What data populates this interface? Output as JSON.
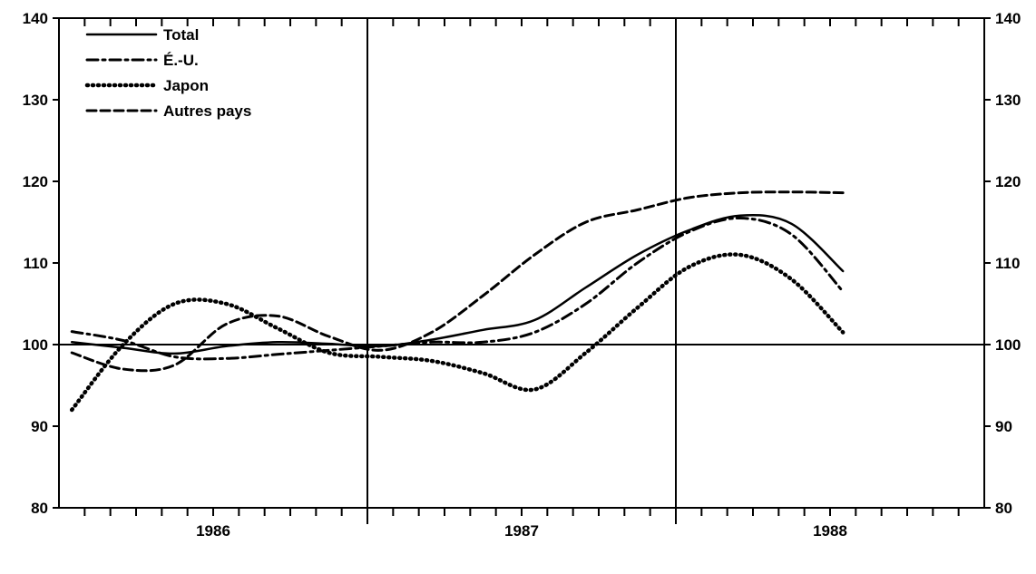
{
  "chart_data": {
    "type": "line",
    "x_period_labels": [
      "1986",
      "1987",
      "1988"
    ],
    "x_months_start": 1,
    "ylim": [
      80,
      140
    ],
    "yticks": [
      80,
      90,
      100,
      110,
      120,
      130,
      140
    ],
    "reference_line_y": 100,
    "grid": false,
    "legend_position": "top-left",
    "series": [
      {
        "name": "Total",
        "style": "solid",
        "x": [
          1,
          3,
          5,
          7,
          9,
          11,
          13,
          15,
          17,
          19,
          21,
          23,
          25,
          27,
          29,
          31
        ],
        "y": [
          100.3,
          99.6,
          98.9,
          99.8,
          100.3,
          100.1,
          99.8,
          100.6,
          101.8,
          103.0,
          107.0,
          111.0,
          114.0,
          115.8,
          114.8,
          109.0
        ]
      },
      {
        "name": "É.-U.",
        "style": "dashdot",
        "x": [
          1,
          3,
          5,
          7,
          9,
          11,
          13,
          15,
          17,
          19,
          21,
          23,
          25,
          27,
          29,
          31
        ],
        "y": [
          101.6,
          100.5,
          98.5,
          98.3,
          98.8,
          99.3,
          99.8,
          100.3,
          100.3,
          101.5,
          105.0,
          110.0,
          113.8,
          115.5,
          113.5,
          106.5
        ]
      },
      {
        "name": "Japon",
        "style": "dotted",
        "x": [
          1,
          3,
          5,
          7,
          9,
          11,
          13,
          15,
          17,
          19,
          21,
          23,
          25,
          27,
          29,
          31
        ],
        "y": [
          92.0,
          100.0,
          105.0,
          105.0,
          102.0,
          99.0,
          98.5,
          98.0,
          96.5,
          94.5,
          99.0,
          104.5,
          109.5,
          111.0,
          108.0,
          101.5
        ]
      },
      {
        "name": "Autres pays",
        "style": "dashed",
        "x": [
          1,
          3,
          5,
          7,
          9,
          11,
          13,
          15,
          17,
          19,
          21,
          23,
          25,
          27,
          29,
          31
        ],
        "y": [
          99.0,
          97.0,
          97.5,
          102.5,
          103.5,
          101.0,
          99.3,
          101.5,
          106.0,
          111.0,
          115.0,
          116.5,
          118.0,
          118.6,
          118.7,
          118.6
        ]
      }
    ]
  }
}
